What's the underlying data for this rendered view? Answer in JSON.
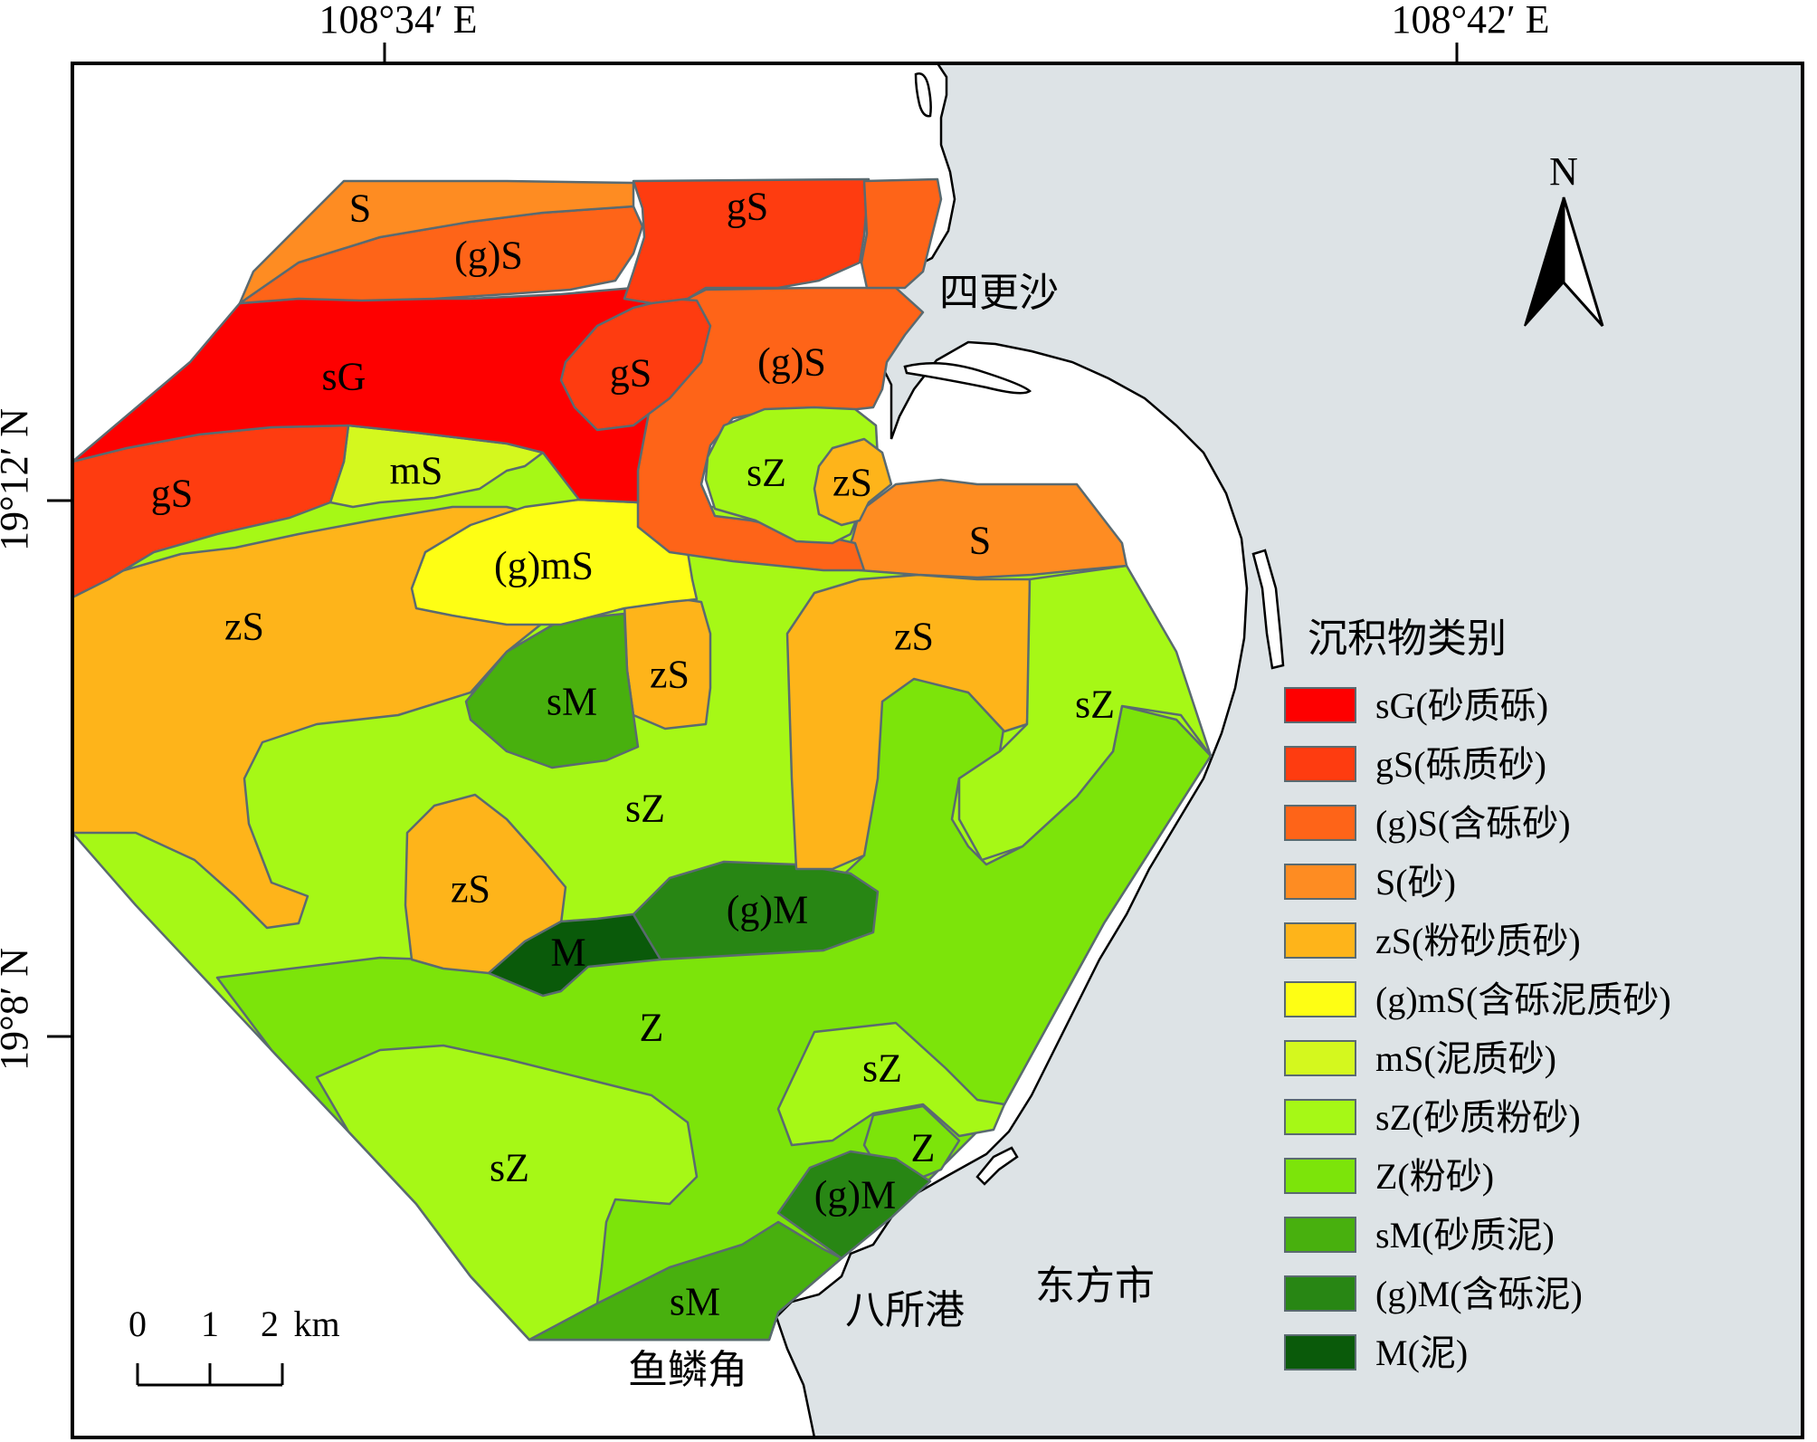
{
  "coordinates": {
    "top_left_label": "108°34′ E",
    "top_right_label": "108°42′ E",
    "left_upper_label": "19°12′ N",
    "left_lower_label": "19°8′ N"
  },
  "north_arrow": {
    "label": "N",
    "icon": "north-arrow-icon"
  },
  "place_names": {
    "sigengsha": "四更沙",
    "basuogang": "八所港",
    "dongfangshi": "东方市",
    "yulinjiao": "鱼鳞角"
  },
  "scale_bar": {
    "tick_0": "0",
    "tick_1": "1",
    "tick_2": "2",
    "unit": "km"
  },
  "colors": {
    "land": "#ffffff",
    "sea": "#dde3e6",
    "frame": "#000000",
    "zone_border": "#5a6a70"
  },
  "legend": {
    "title": "沉积物类别",
    "items": [
      {
        "key": "sG",
        "label": "sG(砂质砾)",
        "color": "#fe0000"
      },
      {
        "key": "gS",
        "label": "gS(砾质砂)",
        "color": "#fe3c10"
      },
      {
        "key": "(g)S",
        "label": "(g)S(含砾砂)",
        "color": "#fe6418"
      },
      {
        "key": "S",
        "label": "S(砂)",
        "color": "#fe8c22"
      },
      {
        "key": "zS",
        "label": "zS(粉砂质砂)",
        "color": "#feb41a"
      },
      {
        "key": "(g)mS",
        "label": "(g)mS(含砾泥质砂)",
        "color": "#fefe14"
      },
      {
        "key": "mS",
        "label": "mS(泥质砂)",
        "color": "#d4f81e"
      },
      {
        "key": "sZ",
        "label": "sZ(砂质粉砂)",
        "color": "#a6f816"
      },
      {
        "key": "Z",
        "label": "Z(粉砂)",
        "color": "#7ce40a"
      },
      {
        "key": "sM",
        "label": "sM(砂质泥)",
        "color": "#48b00e"
      },
      {
        "key": "(g)M",
        "label": "(g)M(含砾泥)",
        "color": "#288614"
      },
      {
        "key": "M",
        "label": "M(泥)",
        "color": "#0a5a0a"
      }
    ]
  },
  "zone_labels": {
    "s_top": "S",
    "gs_top": "gS",
    "g_s_top": "(g)S",
    "sg": "sG",
    "gs_mid": "gS",
    "g_s_mid": "(g)S",
    "gs_left": "gS",
    "ms": "mS",
    "sz_small": "sZ",
    "zs_small": "zS",
    "s_right": "S",
    "g_ms": "(g)mS",
    "zs_left": "zS",
    "sm_mid": "sM",
    "zs_center": "zS",
    "zs_right": "zS",
    "sz_right": "sZ",
    "sz_center": "sZ",
    "zs_lower": "zS",
    "g_m_mid": "(g)M",
    "m": "M",
    "z": "Z",
    "sz_lowright": "sZ",
    "z_small": "Z",
    "sz_bottom": "sZ",
    "g_m_low": "(g)M",
    "sm_bottom": "sM"
  }
}
